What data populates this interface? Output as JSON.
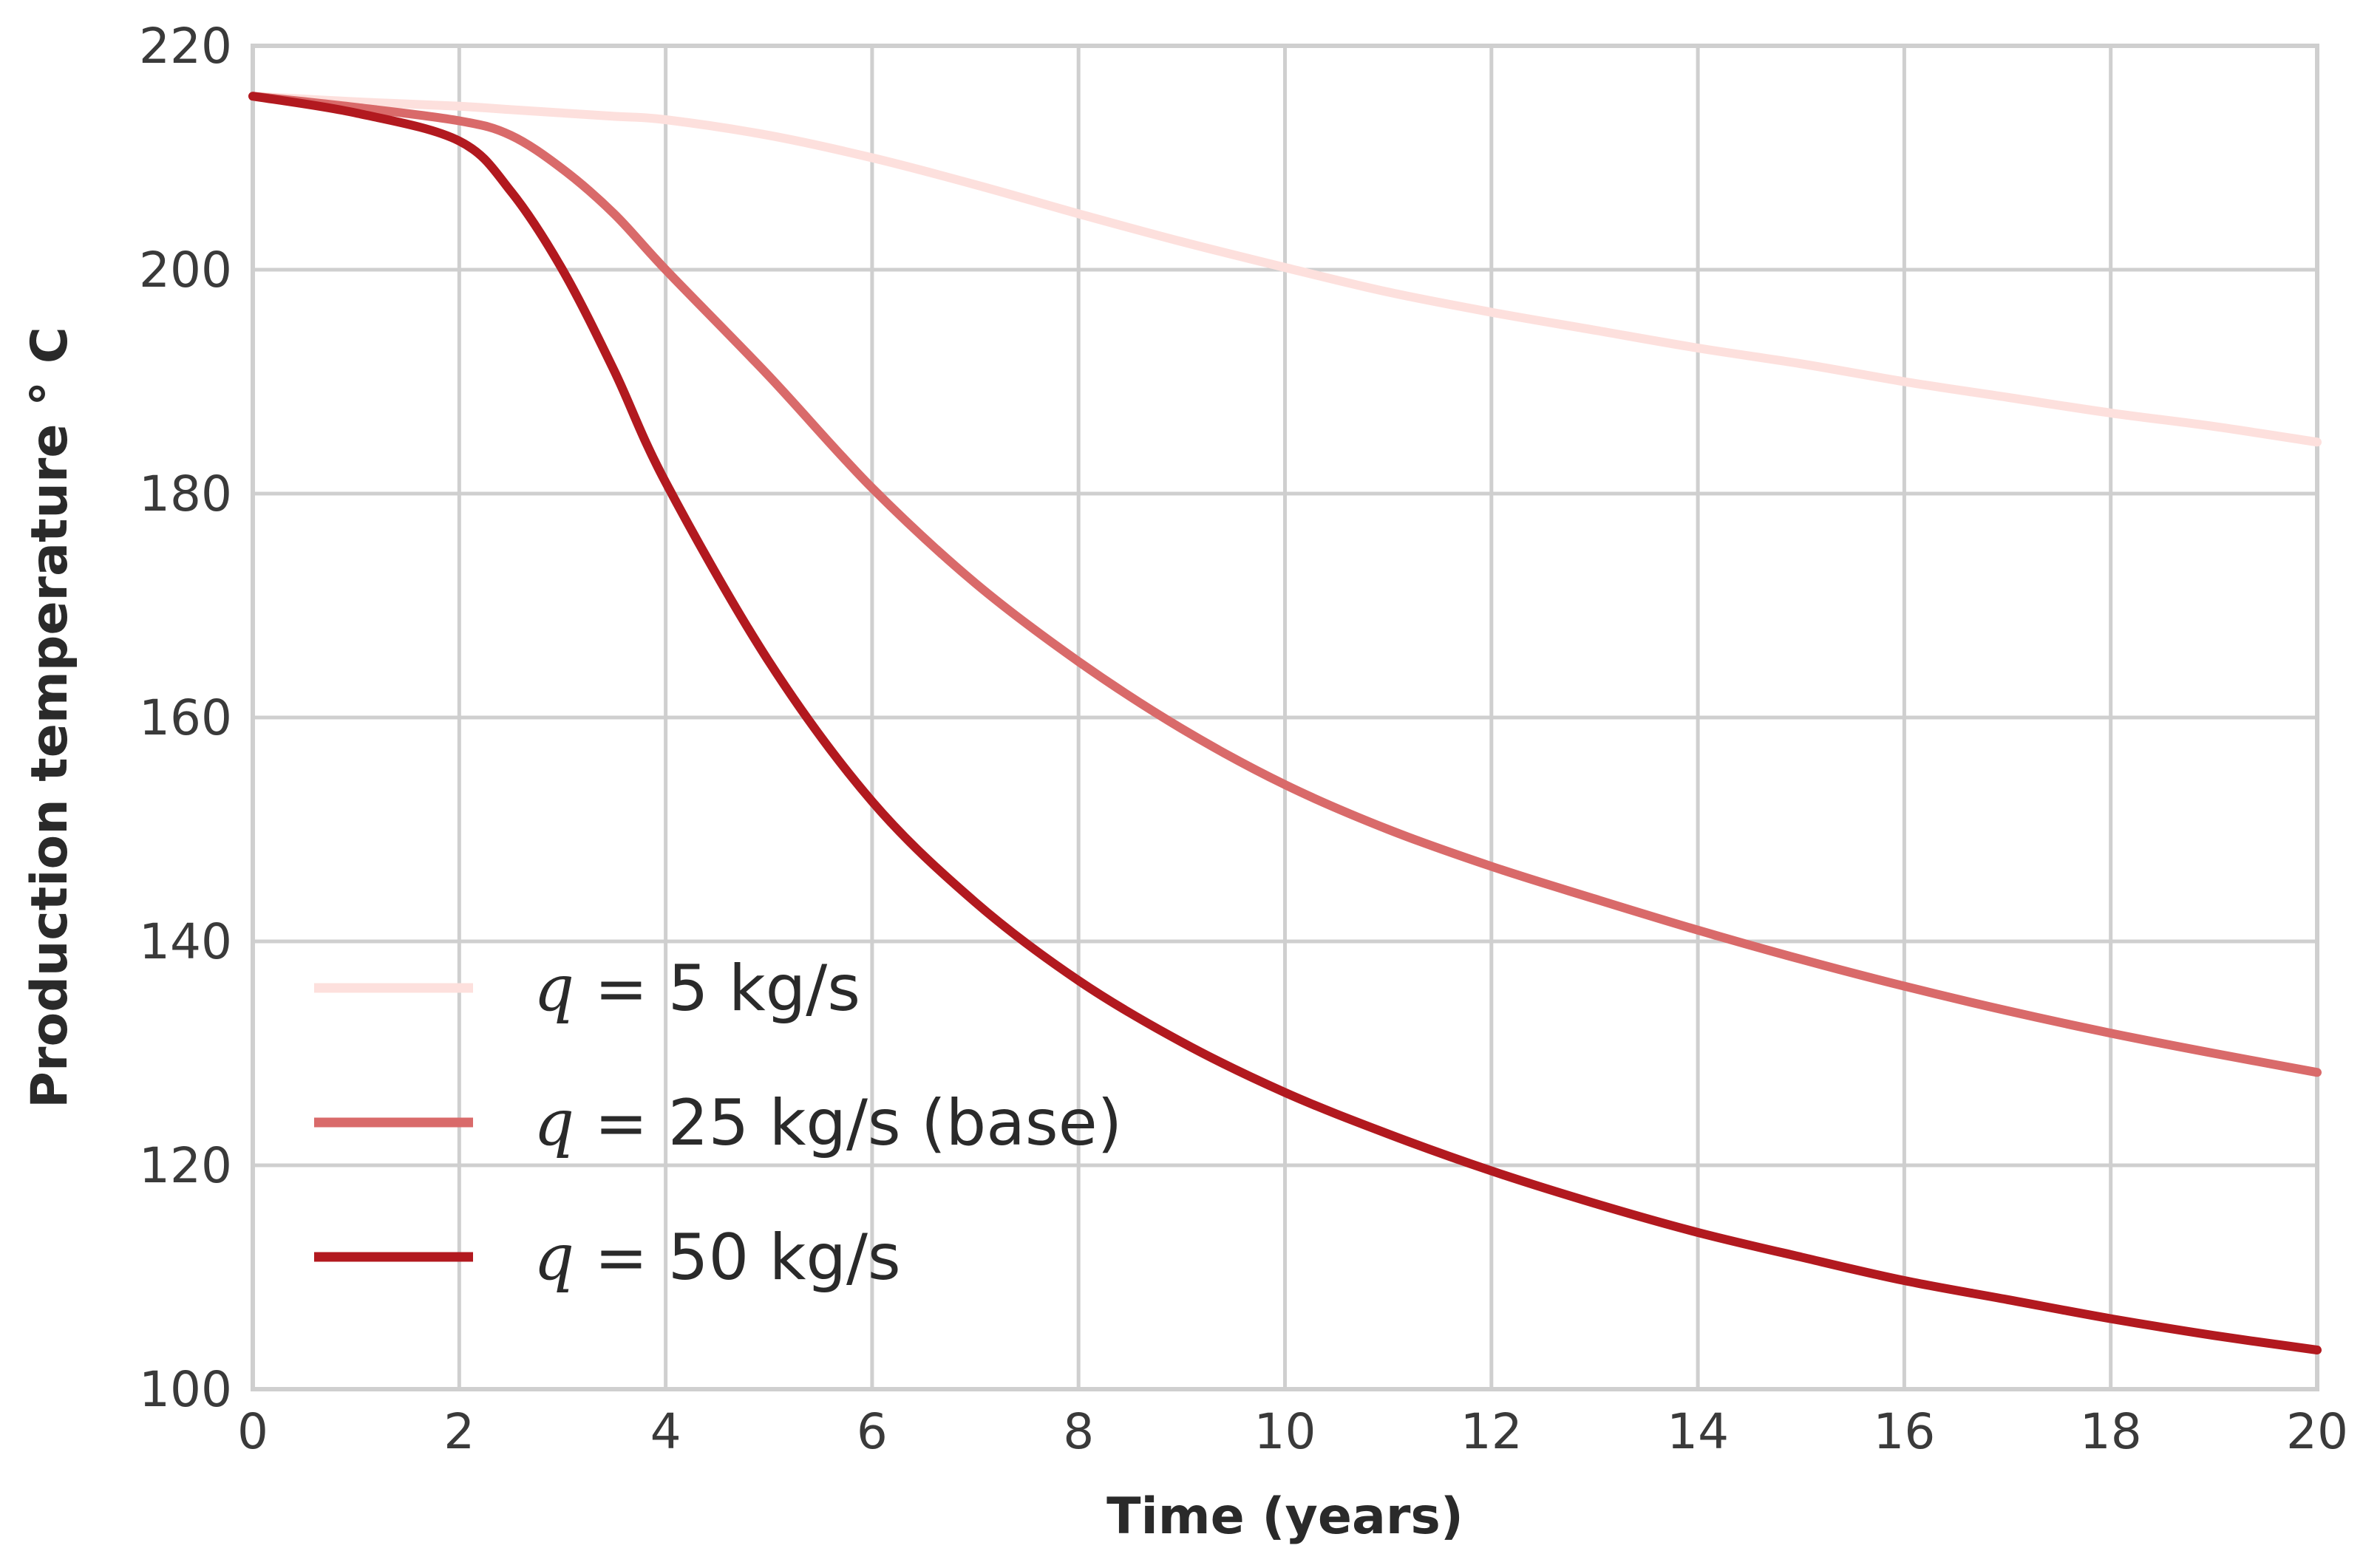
{
  "chart_data": {
    "type": "line",
    "title": "",
    "xlabel": "Time (years)",
    "ylabel": "Production temperature  ° C",
    "xlim": [
      0,
      20
    ],
    "ylim": [
      100,
      220
    ],
    "grid": true,
    "legend_position": "bottom-left",
    "x_ticks": [
      "0",
      "2",
      "4",
      "6",
      "8",
      "10",
      "12",
      "14",
      "16",
      "18",
      "20"
    ],
    "y_ticks": [
      "100",
      "120",
      "140",
      "160",
      "180",
      "200",
      "220"
    ],
    "x": [
      0,
      1,
      2,
      2.5,
      3,
      3.5,
      4,
      5,
      6,
      7,
      8,
      9,
      10,
      11,
      12,
      13,
      14,
      15,
      16,
      17,
      18,
      19,
      20
    ],
    "series": [
      {
        "name": "q = 5 kg/s",
        "legend_q": "q",
        "legend_rest": " = 5 kg/s",
        "color": "#fde0dd",
        "values": [
          215.5,
          215.0,
          214.6,
          214.3,
          214.0,
          213.7,
          213.4,
          212.0,
          210.0,
          207.6,
          205.0,
          202.5,
          200.2,
          198.0,
          196.2,
          194.6,
          193.0,
          191.6,
          190.0,
          188.6,
          187.2,
          186.0,
          184.6
        ]
      },
      {
        "name": "q = 25 kg/s (base)",
        "legend_q": "q",
        "legend_rest": " = 25 kg/s (base)",
        "color": "#d96a6a",
        "values": [
          215.5,
          214.5,
          213.3,
          212.0,
          209.0,
          205.0,
          200.0,
          190.5,
          180.5,
          172.0,
          165.0,
          159.0,
          154.0,
          150.0,
          146.7,
          143.8,
          141.0,
          138.4,
          136.0,
          133.8,
          131.8,
          130.0,
          128.3
        ]
      },
      {
        "name": "q = 50 kg/s",
        "legend_q": "q",
        "legend_rest": " = 50 kg/s",
        "color": "#b2191f",
        "values": [
          215.5,
          214.0,
          211.5,
          207.0,
          200.0,
          191.0,
          181.0,
          165.0,
          152.5,
          143.5,
          136.5,
          131.0,
          126.5,
          122.8,
          119.5,
          116.6,
          114.0,
          111.8,
          109.7,
          108.0,
          106.3,
          104.8,
          103.5
        ]
      }
    ]
  }
}
